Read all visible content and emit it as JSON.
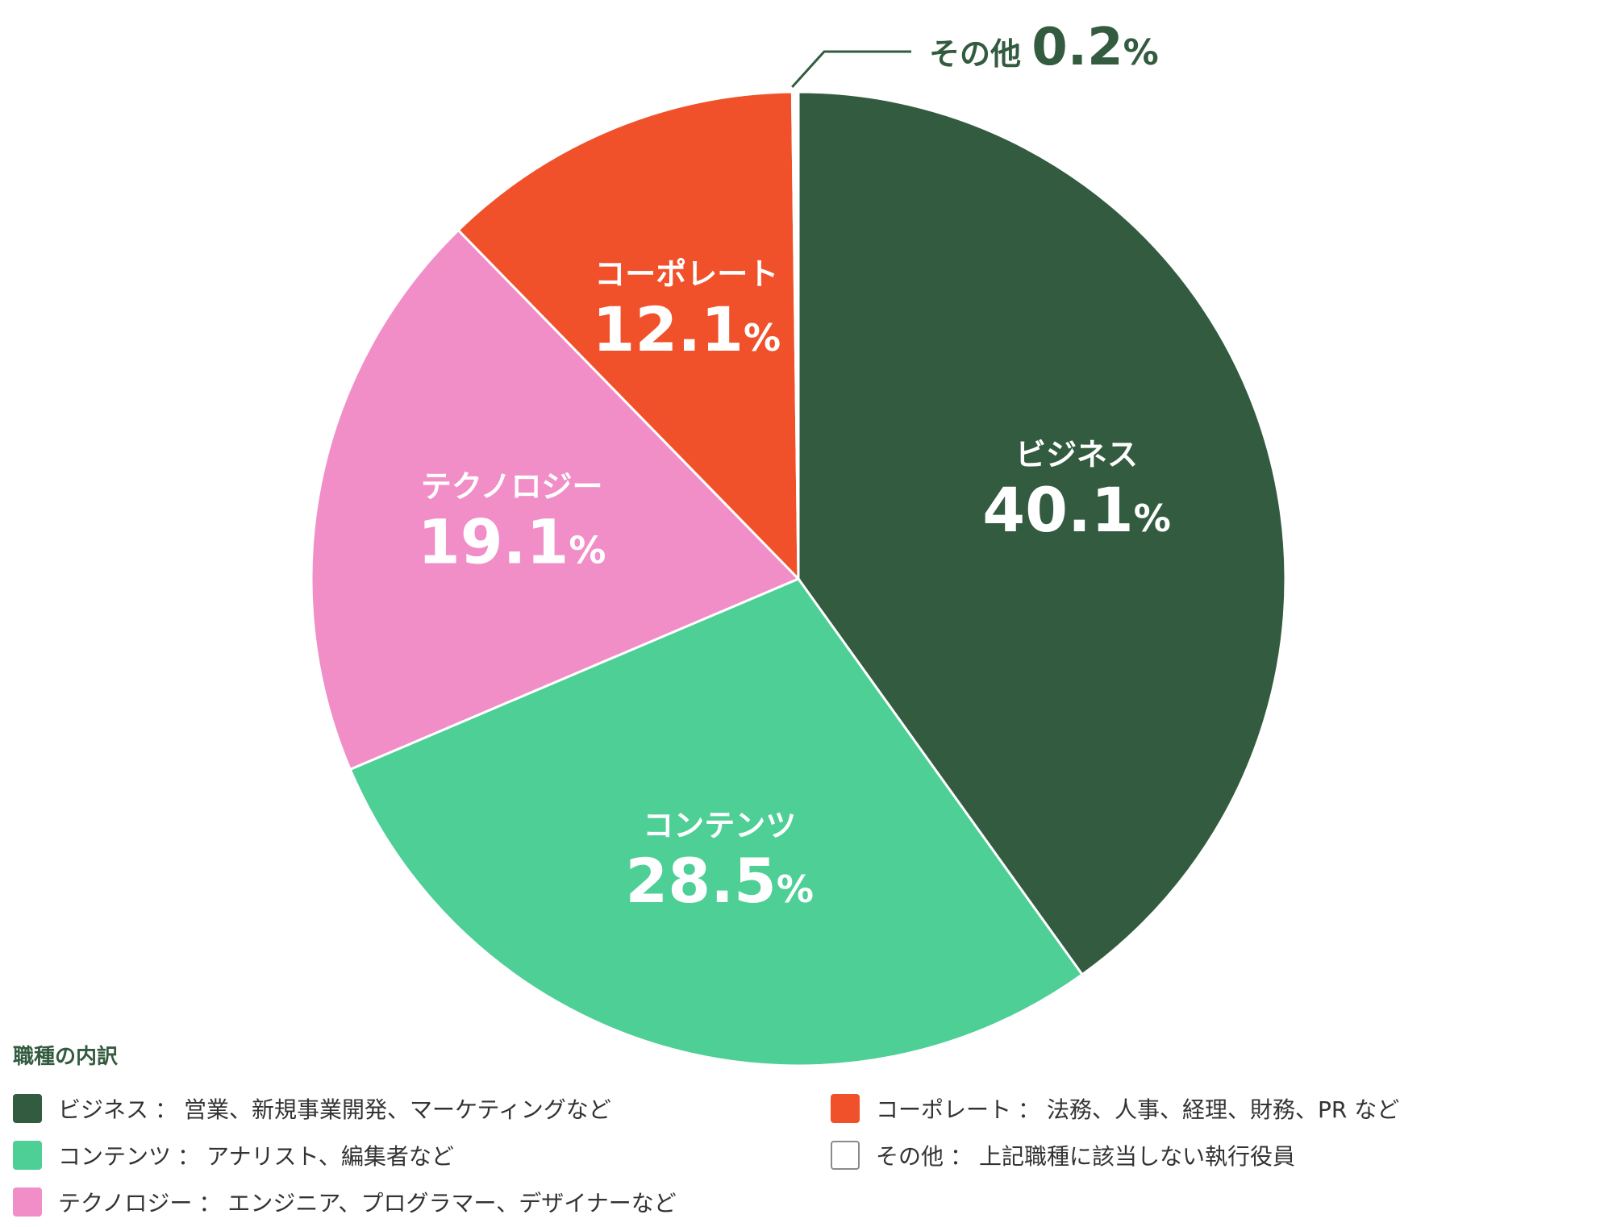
{
  "chart_data": {
    "type": "pie",
    "categories": [
      "ビジネス",
      "コンテンツ",
      "テクノロジー",
      "コーポレート",
      "その他"
    ],
    "values": [
      40.1,
      28.5,
      19.1,
      12.1,
      0.2
    ],
    "value_labels": [
      "40.1",
      "28.5",
      "19.1",
      "12.1",
      "0.2"
    ],
    "unit": "%",
    "colors": [
      "#335b3f",
      "#4dcf96",
      "#f18ec8",
      "#f0512a",
      "#ffffff"
    ],
    "start": "12 o'clock, clockwise"
  },
  "legend": {
    "title": "職種の内訳",
    "separator": "：",
    "items": [
      {
        "name": "ビジネス",
        "desc": "営業、新規事業開発、マーケティングなど",
        "color": "#335b3f"
      },
      {
        "name": "コンテンツ",
        "desc": "アナリスト、編集者など",
        "color": "#4dcf96"
      },
      {
        "name": "テクノロジー",
        "desc": "エンジニア、プログラマー、デザイナーなど",
        "color": "#f18ec8"
      },
      {
        "name": "コーポレート",
        "desc": "法務、人事、経理、財務、PR など",
        "color": "#f0512a"
      },
      {
        "name": "その他",
        "desc": "上記職種に該当しない執行役員",
        "color": "#ffffff"
      }
    ]
  }
}
